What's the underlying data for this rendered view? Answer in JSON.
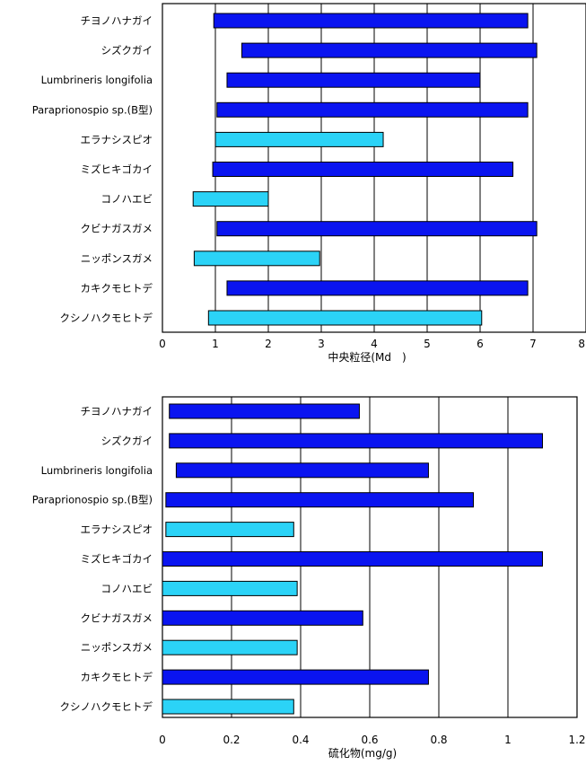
{
  "colors": {
    "dark_blue": "#0A14F0",
    "light_blue": "#2BD3F7",
    "outline": "#000000",
    "gridline": "#000000"
  },
  "chart_data": [
    {
      "type": "bar",
      "orientation": "horizontal",
      "style": "floating-range",
      "xlabel": "中央粒径(Md　)",
      "xlim": [
        0,
        8
      ],
      "xticks": [
        0,
        1,
        2,
        3,
        4,
        5,
        6,
        7,
        8
      ],
      "grid": true,
      "categories": [
        "チヨノハナガイ",
        "シズクガイ",
        "Lumbrineris longifolia",
        "Paraprionospio sp.(B型)",
        "エラナシスピオ",
        "ミズヒキゴカイ",
        "コノハエビ",
        "クビナガスガメ",
        "ニッポンスガメ",
        "カキクモヒトデ",
        "クシノハクモヒトデ"
      ],
      "ranges": [
        [
          0.97,
          6.9
        ],
        [
          1.5,
          7.07
        ],
        [
          1.22,
          6.0
        ],
        [
          1.03,
          6.9
        ],
        [
          1.0,
          4.17
        ],
        [
          0.95,
          6.62
        ],
        [
          0.58,
          2.0
        ],
        [
          1.03,
          7.07
        ],
        [
          0.6,
          2.97
        ],
        [
          1.22,
          6.9
        ],
        [
          0.87,
          6.03
        ]
      ],
      "bar_colors": [
        "dark_blue",
        "dark_blue",
        "dark_blue",
        "dark_blue",
        "light_blue",
        "dark_blue",
        "light_blue",
        "dark_blue",
        "light_blue",
        "dark_blue",
        "light_blue"
      ]
    },
    {
      "type": "bar",
      "orientation": "horizontal",
      "style": "floating-range",
      "xlabel": "硫化物(mg/g)",
      "xlim": [
        0,
        1.2
      ],
      "xticks": [
        0,
        0.2,
        0.4,
        0.6,
        0.8,
        1,
        1.2
      ],
      "xtick_labels": [
        "0",
        "0.2",
        "0.4",
        "0.6",
        "0.8",
        "1",
        "1.2"
      ],
      "grid": true,
      "categories": [
        "チヨノハナガイ",
        "シズクガイ",
        "Lumbrineris longifolia",
        "Paraprionospio sp.(B型)",
        "エラナシスピオ",
        "ミズヒキゴカイ",
        "コノハエビ",
        "クビナガスガメ",
        "ニッポンスガメ",
        "カキクモヒトデ",
        "クシノハクモヒトデ"
      ],
      "ranges": [
        [
          0.02,
          0.57
        ],
        [
          0.02,
          1.1
        ],
        [
          0.04,
          0.77
        ],
        [
          0.01,
          0.9
        ],
        [
          0.01,
          0.38
        ],
        [
          0.0,
          1.1
        ],
        [
          0.0,
          0.39
        ],
        [
          0.0,
          0.58
        ],
        [
          0.0,
          0.39
        ],
        [
          0.0,
          0.77
        ],
        [
          0.0,
          0.38
        ]
      ],
      "bar_colors": [
        "dark_blue",
        "dark_blue",
        "dark_blue",
        "dark_blue",
        "light_blue",
        "dark_blue",
        "light_blue",
        "dark_blue",
        "light_blue",
        "dark_blue",
        "light_blue"
      ]
    }
  ]
}
